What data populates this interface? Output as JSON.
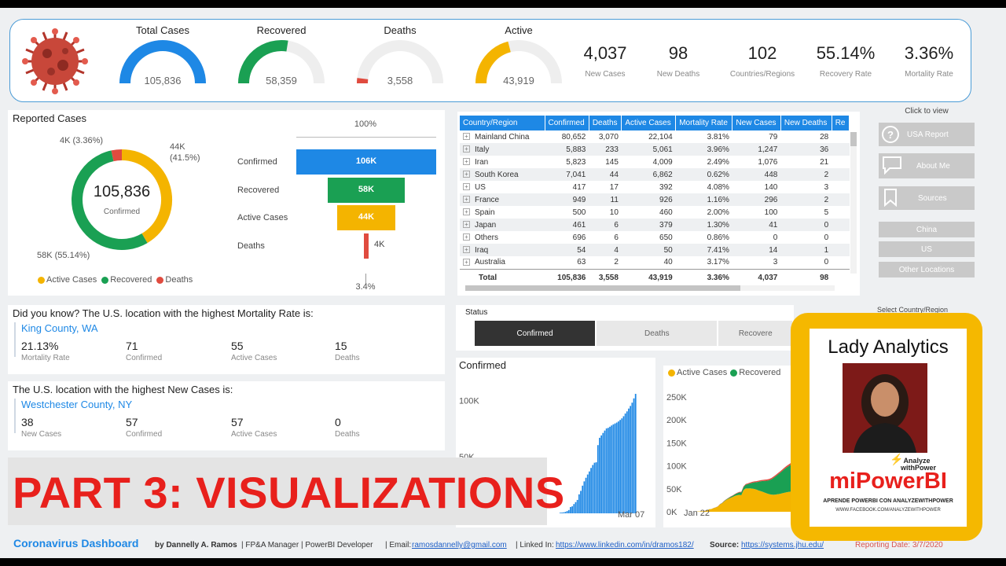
{
  "kpis": {
    "gauges": [
      {
        "title": "Total Cases",
        "value": "105,836",
        "fill": 1.0,
        "color": "#1e88e5"
      },
      {
        "title": "Recovered",
        "value": "58,359",
        "fill": 0.55,
        "color": "#1aa053"
      },
      {
        "title": "Deaths",
        "value": "3,558",
        "fill": 0.04,
        "color": "#e04b3f"
      },
      {
        "title": "Active",
        "value": "43,919",
        "fill": 0.42,
        "color": "#f4b400"
      }
    ],
    "stats": [
      {
        "value": "4,037",
        "label": "New Cases"
      },
      {
        "value": "98",
        "label": "New Deaths"
      },
      {
        "value": "102",
        "label": "Countries/Regions"
      },
      {
        "value": "55.14%",
        "label": "Recovery Rate"
      },
      {
        "value": "3.36%",
        "label": "Mortality Rate"
      }
    ]
  },
  "reported": {
    "title": "Reported Cases",
    "center_value": "105,836",
    "center_label": "Confirmed",
    "label_deaths": "4K (3.36%)",
    "label_active_1": "44K",
    "label_active_2": "(41.5%)",
    "label_recovered": "58K (55.14%)",
    "legend": [
      {
        "name": "Active Cases",
        "color": "#f4b400"
      },
      {
        "name": "Recovered",
        "color": "#1aa053"
      },
      {
        "name": "Deaths",
        "color": "#e04b3f"
      }
    ]
  },
  "funnel": {
    "top_label": "100%",
    "bottom_label": "3.4%",
    "stages": [
      {
        "name": "Confirmed",
        "label": "106K",
        "value": 105836,
        "color": "#1e88e5"
      },
      {
        "name": "Recovered",
        "label": "58K",
        "value": 58359,
        "color": "#1aa053"
      },
      {
        "name": "Active Cases",
        "label": "44K",
        "value": 43919,
        "color": "#f4b400"
      },
      {
        "name": "Deaths",
        "label": "4K",
        "value": 3558,
        "color": "#e04b3f"
      }
    ]
  },
  "table": {
    "headers": [
      "Country/Region",
      "Confirmed",
      "Deaths",
      "Active Cases",
      "Mortality Rate",
      "New Cases",
      "New Deaths",
      "Re"
    ],
    "rows": [
      [
        "Mainland China",
        "80,652",
        "3,070",
        "22,104",
        "3.81%",
        "79",
        "28"
      ],
      [
        "Italy",
        "5,883",
        "233",
        "5,061",
        "3.96%",
        "1,247",
        "36"
      ],
      [
        "Iran",
        "5,823",
        "145",
        "4,009",
        "2.49%",
        "1,076",
        "21"
      ],
      [
        "South Korea",
        "7,041",
        "44",
        "6,862",
        "0.62%",
        "448",
        "2"
      ],
      [
        "US",
        "417",
        "17",
        "392",
        "4.08%",
        "140",
        "3"
      ],
      [
        "France",
        "949",
        "11",
        "926",
        "1.16%",
        "296",
        "2"
      ],
      [
        "Spain",
        "500",
        "10",
        "460",
        "2.00%",
        "100",
        "5"
      ],
      [
        "Japan",
        "461",
        "6",
        "379",
        "1.30%",
        "41",
        "0"
      ],
      [
        "Others",
        "696",
        "6",
        "650",
        "0.86%",
        "0",
        "0"
      ],
      [
        "Iraq",
        "54",
        "4",
        "50",
        "7.41%",
        "14",
        "1"
      ],
      [
        "Australia",
        "63",
        "2",
        "40",
        "3.17%",
        "3",
        "0"
      ]
    ],
    "total": [
      "Total",
      "105,836",
      "3,558",
      "43,919",
      "3.36%",
      "4,037",
      "98"
    ]
  },
  "nav": {
    "click_to_view": "Click to view",
    "usa_report": "USA Report",
    "about_me": "About Me",
    "sources": "Sources",
    "china": "China",
    "us": "US",
    "other_locations": "Other Locations",
    "select_country": "Select Country/Region"
  },
  "did_you_know": {
    "title": "Did you know? The U.S. location with the highest Mortality Rate is:",
    "location": "King County, WA",
    "values": [
      {
        "value": "21.13%",
        "label": "Mortality Rate"
      },
      {
        "value": "71",
        "label": "Confirmed"
      },
      {
        "value": "55",
        "label": "Active Cases"
      },
      {
        "value": "15",
        "label": "Deaths"
      }
    ]
  },
  "new_cases_box": {
    "title": "The U.S. location with the highest New Cases is:",
    "location": "Westchester County, NY",
    "values": [
      {
        "value": "38",
        "label": "New Cases"
      },
      {
        "value": "57",
        "label": "Confirmed"
      },
      {
        "value": "57",
        "label": "Active Cases"
      },
      {
        "value": "0",
        "label": "Deaths"
      }
    ]
  },
  "status": {
    "title": "Status",
    "tabs": [
      "Confirmed",
      "Deaths",
      "Recovere"
    ]
  },
  "confirmed_chart": {
    "title": "Confirmed",
    "x_label_end": "Mar 07"
  },
  "area_chart": {
    "legend": [
      "Active Cases",
      "Recovered"
    ],
    "x_label_start": "Jan 22"
  },
  "chart_data": [
    {
      "type": "bar",
      "title": "Confirmed",
      "yticks": [
        "100K",
        "50K"
      ],
      "x_end": "Mar 07",
      "values": [
        0.6,
        0.7,
        0.9,
        1.3,
        2.0,
        2.9,
        5.6,
        6.2,
        8.2,
        9.9,
        11.9,
        16.8,
        19.9,
        24.5,
        28.3,
        31.5,
        34.4,
        37.1,
        40.2,
        42.8,
        44.8,
        45.2,
        60.4,
        66.9,
        69.0,
        71.2,
        73.3,
        75.2,
        75.7,
        76.7,
        77.8,
        78.8,
        79.6,
        80.4,
        81.4,
        82.7,
        84.1,
        86.0,
        88.4,
        90.3,
        92.8,
        95.1,
        98.0,
        101.8,
        105.8
      ],
      "ylim": [
        0,
        110
      ]
    },
    {
      "type": "area",
      "yticks": [
        "250K",
        "200K",
        "150K",
        "100K",
        "50K",
        "0K"
      ],
      "ylim": [
        0,
        250
      ],
      "x_start": "Jan 22",
      "series": [
        {
          "name": "Active Cases",
          "values": [
            0.5,
            0.6,
            0.9,
            1.2,
            1.9,
            2.7,
            5.4,
            5.9,
            7.8,
            9.3,
            11.2,
            15.8,
            18.5,
            22.5,
            25.8,
            28.3,
            30.5,
            32.3,
            34.6,
            35.9,
            36.8,
            36.1,
            47.0,
            50.7,
            50.8,
            50.9,
            50.5,
            49.6,
            48.3,
            46.4,
            45.0,
            43.5,
            41.5,
            39.8,
            38.3,
            37.4,
            37.0,
            37.4,
            38.3,
            39.0,
            40.2,
            41.3,
            42.4,
            43.3,
            43.9
          ]
        },
        {
          "name": "Recovered",
          "values": [
            0.0,
            0.0,
            0.0,
            0.0,
            0.1,
            0.1,
            0.1,
            0.1,
            0.1,
            0.2,
            0.2,
            0.5,
            0.6,
            0.9,
            1.1,
            1.5,
            2.0,
            2.6,
            3.2,
            4.3,
            5.2,
            6.2,
            6.7,
            8.1,
            9.4,
            10.8,
            12.5,
            14.4,
            16.1,
            18.9,
            21.4,
            23.4,
            25.8,
            27.9,
            30.4,
            33.3,
            36.7,
            39.8,
            42.7,
            45.6,
            48.2,
            51.2,
            53.8,
            55.9,
            58.4
          ]
        },
        {
          "name": "Deaths",
          "values": [
            0.0,
            0.0,
            0.0,
            0.0,
            0.1,
            0.1,
            0.1,
            0.1,
            0.2,
            0.2,
            0.3,
            0.4,
            0.4,
            0.5,
            0.6,
            0.7,
            0.8,
            0.9,
            1.0,
            1.1,
            1.3,
            1.4,
            1.5,
            1.6,
            1.7,
            1.8,
            2.0,
            2.1,
            2.2,
            2.3,
            2.4,
            2.5,
            2.6,
            2.7,
            2.8,
            2.8,
            2.9,
            2.9,
            3.0,
            3.0,
            3.1,
            3.2,
            3.3,
            3.5,
            3.6
          ]
        }
      ]
    }
  ],
  "banner": {
    "text": "PART 3: VISUALIZATIONS"
  },
  "promo": {
    "title": "Lady Analytics",
    "brand_main": "miPowerBI",
    "brand_small_1": "Analyze",
    "brand_small_2": "withPower",
    "tagline": "APRENDE POWERBI CON ANALYZEWITHPOWER",
    "url": "WWW.FACEBOOK.COM/ANALYZEWITHPOWER"
  },
  "footer": {
    "title": "Coronavirus Dashboard",
    "by": "by Dannelly A. Ramos",
    "role": "| FP&A Manager | PowerBI Developer",
    "email_label": "| Email:",
    "email": "ramosdannelly@gmail.com",
    "linkedin_label": "| Linked In:",
    "linkedin": "https://www.linkedin.com/in/dramos182/",
    "source_label": "Source:",
    "source": "https://systems.jhu.edu/",
    "reporting_date": "Reporting Date: 3/7/2020"
  },
  "colors": {
    "blue": "#1e88e5",
    "green": "#1aa053",
    "red": "#e04b3f",
    "yellow": "#f4b400",
    "banner_red": "#e8201c",
    "promo_yellow": "#f5b800"
  }
}
